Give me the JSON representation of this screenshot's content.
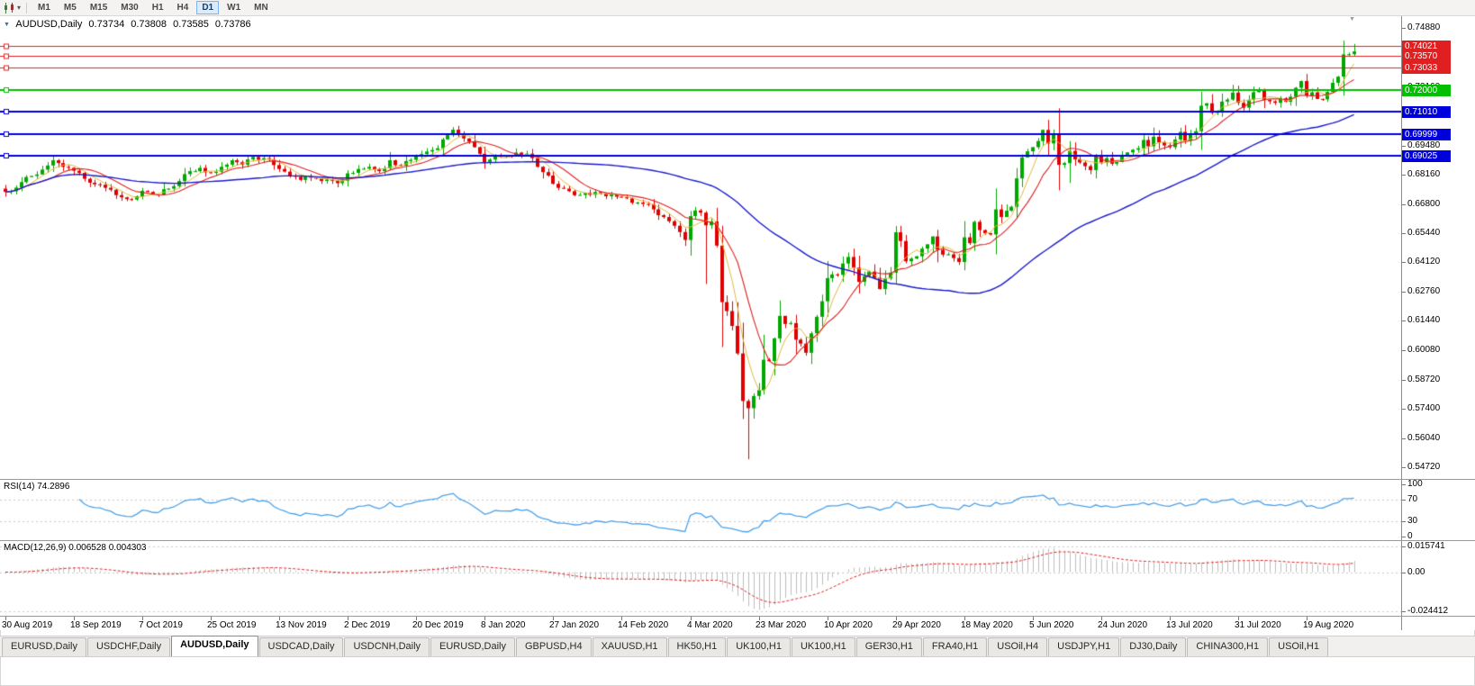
{
  "toolbar": {
    "timeframes": [
      "M1",
      "M5",
      "M15",
      "M30",
      "H1",
      "H4",
      "D1",
      "W1",
      "MN"
    ],
    "active_timeframe": "D1"
  },
  "chart_header": {
    "dropdown_icon": "▼",
    "symbol_period": "AUDUSD,Daily",
    "open": "0.73734",
    "high": "0.73808",
    "low": "0.73585",
    "close": "0.73786"
  },
  "price_axis": {
    "ticks": [
      "0.74880",
      "0.73520",
      "0.72160",
      "0.70840",
      "0.69480",
      "0.68160",
      "0.66800",
      "0.65440",
      "0.64120",
      "0.62760",
      "0.61440",
      "0.60080",
      "0.58720",
      "0.57400",
      "0.56040",
      "0.54720"
    ]
  },
  "horizontal_lines": [
    {
      "label": "0.74021",
      "price": 0.74021,
      "color": "#e02020",
      "width": 1
    },
    {
      "label": "0.73570",
      "price": 0.7357,
      "color": "#e02020",
      "width": 1
    },
    {
      "label": "0.73033",
      "price": 0.73033,
      "color": "#e02020",
      "width": 1
    },
    {
      "label": "0.72000",
      "price": 0.72,
      "color": "#00c000",
      "width": 2
    },
    {
      "label": "0.71010",
      "price": 0.7101,
      "color": "#0000dd",
      "width": 2
    },
    {
      "label": "0.69999",
      "price": 0.69999,
      "color": "#0000dd",
      "width": 2
    },
    {
      "label": "0.69025",
      "price": 0.69025,
      "color": "#0000dd",
      "width": 2
    }
  ],
  "chart_data": {
    "type": "candlestick",
    "symbol": "AUDUSD",
    "timeframe": "Daily",
    "bars_count": 257,
    "x_label_every_bars": 13,
    "visible_price_range": {
      "high": "0.74880",
      "low": "0.54720"
    },
    "colors": {
      "up": "#00a800",
      "down": "#e00000"
    },
    "moving_averages": [
      {
        "name": "ma-fast",
        "period": 5,
        "method": "sma",
        "color": "#e0b83c",
        "width": 1
      },
      {
        "name": "ma-mid",
        "period": 10,
        "method": "sma",
        "color": "#dd2222",
        "width": 1.1
      },
      {
        "name": "ma-slow",
        "period": 50,
        "method": "sma",
        "color": "#1a1acc",
        "width": 1.4
      }
    ],
    "close_keypoints": [
      [
        0,
        0.6735
      ],
      [
        3,
        0.678
      ],
      [
        6,
        0.6815
      ],
      [
        9,
        0.688
      ],
      [
        13,
        0.6832
      ],
      [
        17,
        0.677
      ],
      [
        20,
        0.6745
      ],
      [
        22,
        0.671
      ],
      [
        24,
        0.67
      ],
      [
        26,
        0.674
      ],
      [
        29,
        0.6722
      ],
      [
        31,
        0.675
      ],
      [
        33,
        0.6785
      ],
      [
        35,
        0.683
      ],
      [
        37,
        0.6845
      ],
      [
        39,
        0.6822
      ],
      [
        41,
        0.685
      ],
      [
        43,
        0.688
      ],
      [
        45,
        0.686
      ],
      [
        47,
        0.6895
      ],
      [
        49,
        0.689
      ],
      [
        52,
        0.684
      ],
      [
        54,
        0.681
      ],
      [
        56,
        0.679
      ],
      [
        58,
        0.68
      ],
      [
        60,
        0.6785
      ],
      [
        63,
        0.6775
      ],
      [
        65,
        0.682
      ],
      [
        67,
        0.684
      ],
      [
        69,
        0.685
      ],
      [
        71,
        0.683
      ],
      [
        73,
        0.688
      ],
      [
        75,
        0.6855
      ],
      [
        78,
        0.69
      ],
      [
        80,
        0.692
      ],
      [
        82,
        0.6935
      ],
      [
        84,
        0.6995
      ],
      [
        85,
        0.702
      ],
      [
        86,
        0.6995
      ],
      [
        87,
        0.698
      ],
      [
        89,
        0.694
      ],
      [
        91,
        0.687
      ],
      [
        93,
        0.6905
      ],
      [
        95,
        0.69
      ],
      [
        97,
        0.6915
      ],
      [
        99,
        0.691
      ],
      [
        101,
        0.685
      ],
      [
        103,
        0.681
      ],
      [
        104,
        0.6772
      ],
      [
        106,
        0.675
      ],
      [
        108,
        0.672
      ],
      [
        110,
        0.673
      ],
      [
        112,
        0.6735
      ],
      [
        114,
        0.6715
      ],
      [
        117,
        0.671
      ],
      [
        119,
        0.6685
      ],
      [
        121,
        0.668
      ],
      [
        123,
        0.6655
      ],
      [
        125,
        0.662
      ],
      [
        127,
        0.658
      ],
      [
        129,
        0.6515
      ],
      [
        130,
        0.6624
      ],
      [
        131,
        0.665
      ],
      [
        132,
        0.664
      ],
      [
        133,
        0.6582
      ],
      [
        134,
        0.66
      ],
      [
        135,
        0.6489
      ],
      [
        136,
        0.623
      ],
      [
        137,
        0.6189
      ],
      [
        138,
        0.6121
      ],
      [
        139,
        0.5995
      ],
      [
        140,
        0.5777
      ],
      [
        141,
        0.5744
      ],
      [
        142,
        0.58
      ],
      [
        143,
        0.5827
      ],
      [
        144,
        0.5966
      ],
      [
        145,
        0.596
      ],
      [
        146,
        0.6064
      ],
      [
        147,
        0.6167
      ],
      [
        148,
        0.613
      ],
      [
        149,
        0.6134
      ],
      [
        150,
        0.6058
      ],
      [
        151,
        0.604
      ],
      [
        152,
        0.5998
      ],
      [
        153,
        0.6087
      ],
      [
        154,
        0.6163
      ],
      [
        155,
        0.6234
      ],
      [
        156,
        0.634
      ],
      [
        158,
        0.6355
      ],
      [
        160,
        0.6437
      ],
      [
        162,
        0.6323
      ],
      [
        164,
        0.637
      ],
      [
        166,
        0.629
      ],
      [
        168,
        0.6365
      ],
      [
        169,
        0.655
      ],
      [
        170,
        0.651
      ],
      [
        171,
        0.6417
      ],
      [
        173,
        0.644
      ],
      [
        175,
        0.6495
      ],
      [
        176,
        0.6531
      ],
      [
        177,
        0.647
      ],
      [
        179,
        0.6449
      ],
      [
        181,
        0.6414
      ],
      [
        182,
        0.6527
      ],
      [
        183,
        0.65
      ],
      [
        184,
        0.6598
      ],
      [
        185,
        0.656
      ],
      [
        187,
        0.654
      ],
      [
        188,
        0.6655
      ],
      [
        189,
        0.662
      ],
      [
        191,
        0.6667
      ],
      [
        192,
        0.6797
      ],
      [
        193,
        0.6893
      ],
      [
        194,
        0.6921
      ],
      [
        195,
        0.694
      ],
      [
        196,
        0.6968
      ],
      [
        197,
        0.7019
      ],
      [
        198,
        0.6957
      ],
      [
        199,
        0.6998
      ],
      [
        200,
        0.6859
      ],
      [
        201,
        0.6867
      ],
      [
        202,
        0.6923
      ],
      [
        203,
        0.6884
      ],
      [
        205,
        0.6853
      ],
      [
        206,
        0.6835
      ],
      [
        207,
        0.6905
      ],
      [
        208,
        0.687
      ],
      [
        209,
        0.689
      ],
      [
        210,
        0.6864
      ],
      [
        211,
        0.6872
      ],
      [
        212,
        0.6905
      ],
      [
        213,
        0.6916
      ],
      [
        214,
        0.6928
      ],
      [
        215,
        0.6935
      ],
      [
        216,
        0.6973
      ],
      [
        217,
        0.6944
      ],
      [
        218,
        0.6988
      ],
      [
        219,
        0.6962
      ],
      [
        220,
        0.6948
      ],
      [
        221,
        0.694
      ],
      [
        222,
        0.6975
      ],
      [
        223,
        0.701
      ],
      [
        224,
        0.697
      ],
      [
        225,
        0.6996
      ],
      [
        226,
        0.7013
      ],
      [
        227,
        0.713
      ],
      [
        228,
        0.7141
      ],
      [
        229,
        0.7097
      ],
      [
        230,
        0.7103
      ],
      [
        231,
        0.7149
      ],
      [
        232,
        0.7158
      ],
      [
        233,
        0.719
      ],
      [
        234,
        0.7143
      ],
      [
        235,
        0.7121
      ],
      [
        236,
        0.7157
      ],
      [
        237,
        0.7192
      ],
      [
        238,
        0.72
      ],
      [
        239,
        0.7157
      ],
      [
        240,
        0.715
      ],
      [
        241,
        0.7143
      ],
      [
        242,
        0.7164
      ],
      [
        243,
        0.7148
      ],
      [
        244,
        0.7171
      ],
      [
        245,
        0.7212
      ],
      [
        246,
        0.7243
      ],
      [
        247,
        0.7177
      ],
      [
        248,
        0.7191
      ],
      [
        249,
        0.7161
      ],
      [
        250,
        0.7159
      ],
      [
        251,
        0.7193
      ],
      [
        252,
        0.7235
      ],
      [
        253,
        0.7263
      ],
      [
        254,
        0.7365
      ],
      [
        255,
        0.7366
      ],
      [
        256,
        0.73786
      ]
    ],
    "wick_overrides": {
      "85": {
        "h": 0.7032
      },
      "133": {
        "l": 0.6313
      },
      "141": {
        "l": 0.551
      },
      "202": {
        "l": 0.6776
      },
      "256": {
        "h": 0.7413
      }
    }
  },
  "rsi_panel": {
    "label": "RSI(14) 74.2896",
    "period": 14,
    "current_value": "74.2896",
    "line_color": "#4ba1e8",
    "dashed_levels": [
      70,
      30
    ],
    "axis": [
      {
        "label": "100",
        "value": 100
      },
      {
        "label": "70",
        "value": 70
      },
      {
        "label": "30",
        "value": 30
      },
      {
        "label": "0",
        "value": 0
      }
    ]
  },
  "macd_panel": {
    "label": "MACD(12,26,9) 0.006528 0.004303",
    "macd_value": "0.006528",
    "signal_value": "0.004303",
    "histogram_color": "#bdbdbd",
    "signal_color": "#dd2222",
    "axis": [
      {
        "label": "0.015741",
        "value": 0.015741
      },
      {
        "label": "0.00",
        "value": 0
      },
      {
        "label": "-0.024412",
        "value": -0.024412
      }
    ]
  },
  "date_axis": {
    "labels": [
      "30 Aug 2019",
      "18 Sep 2019",
      "7 Oct 2019",
      "25 Oct 2019",
      "13 Nov 2019",
      "2 Dec 2019",
      "20 Dec 2019",
      "8 Jan 2020",
      "27 Jan 2020",
      "14 Feb 2020",
      "4 Mar 2020",
      "23 Mar 2020",
      "10 Apr 2020",
      "29 Apr 2020",
      "18 May 2020",
      "5 Jun 2020",
      "24 Jun 2020",
      "13 Jul 2020",
      "31 Jul 2020",
      "19 Aug 2020"
    ]
  },
  "tabs": {
    "active_index": 2,
    "items": [
      "EURUSD,Daily",
      "USDCHF,Daily",
      "AUDUSD,Daily",
      "USDCAD,Daily",
      "USDCNH,Daily",
      "EURUSD,Daily",
      "GBPUSD,H4",
      "XAUUSD,H1",
      "HK50,H1",
      "UK100,H1",
      "UK100,H1",
      "GER30,H1",
      "FRA40,H1",
      "USOil,H4",
      "USDJPY,H1",
      "DJ30,Daily",
      "CHINA300,H1",
      "USOil,H1"
    ]
  }
}
